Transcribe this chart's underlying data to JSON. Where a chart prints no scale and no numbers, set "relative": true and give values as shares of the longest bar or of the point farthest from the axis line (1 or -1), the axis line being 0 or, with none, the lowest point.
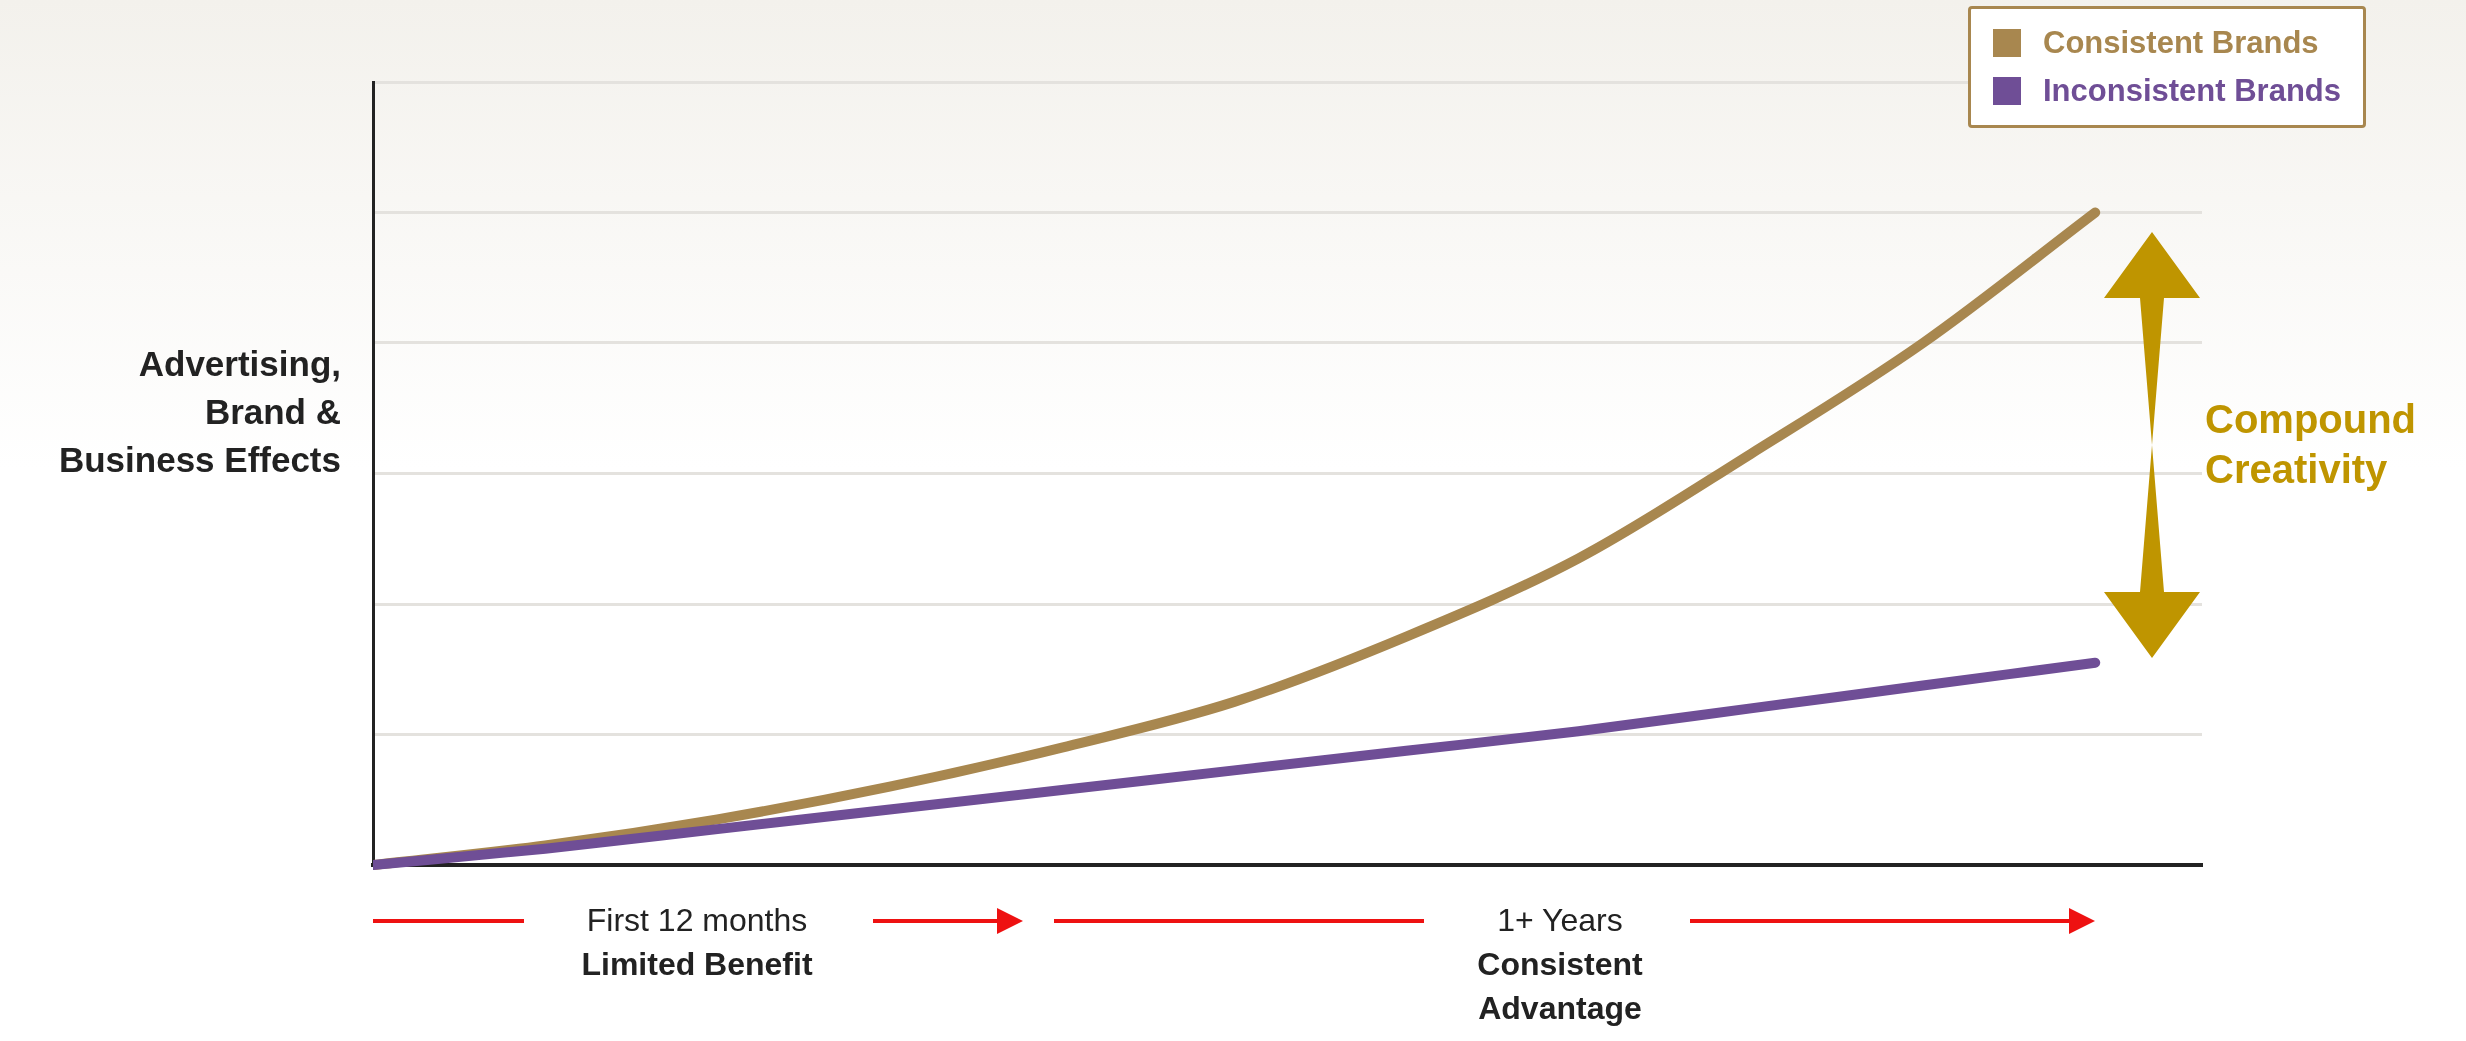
{
  "chart_data": {
    "type": "line",
    "relative": true,
    "ylabel": "Advertising, Brand & Business Effects",
    "categories": [
      null,
      null,
      null,
      null,
      null,
      null,
      null,
      null,
      null,
      null,
      null
    ],
    "series": [
      {
        "name": "Consistent Brands",
        "color": "#a8874f",
        "values": [
          0,
          0.03,
          0.07,
          0.12,
          0.18,
          0.25,
          0.35,
          0.47,
          0.63,
          0.8,
          1
        ]
      },
      {
        "name": "Inconsistent Brands",
        "color": "#6f4e96",
        "values": [
          0,
          0.025,
          0.055,
          0.085,
          0.115,
          0.145,
          0.175,
          0.205,
          0.24,
          0.275,
          0.31
        ]
      }
    ],
    "annotations": [
      "First 12 months",
      "Limited Benefit",
      "1+ Years",
      "Consistent Advantage",
      "Compound Creativity"
    ],
    "grid": "y",
    "legend": "top right",
    "marker": "none",
    "line_style": "solid"
  }
}
